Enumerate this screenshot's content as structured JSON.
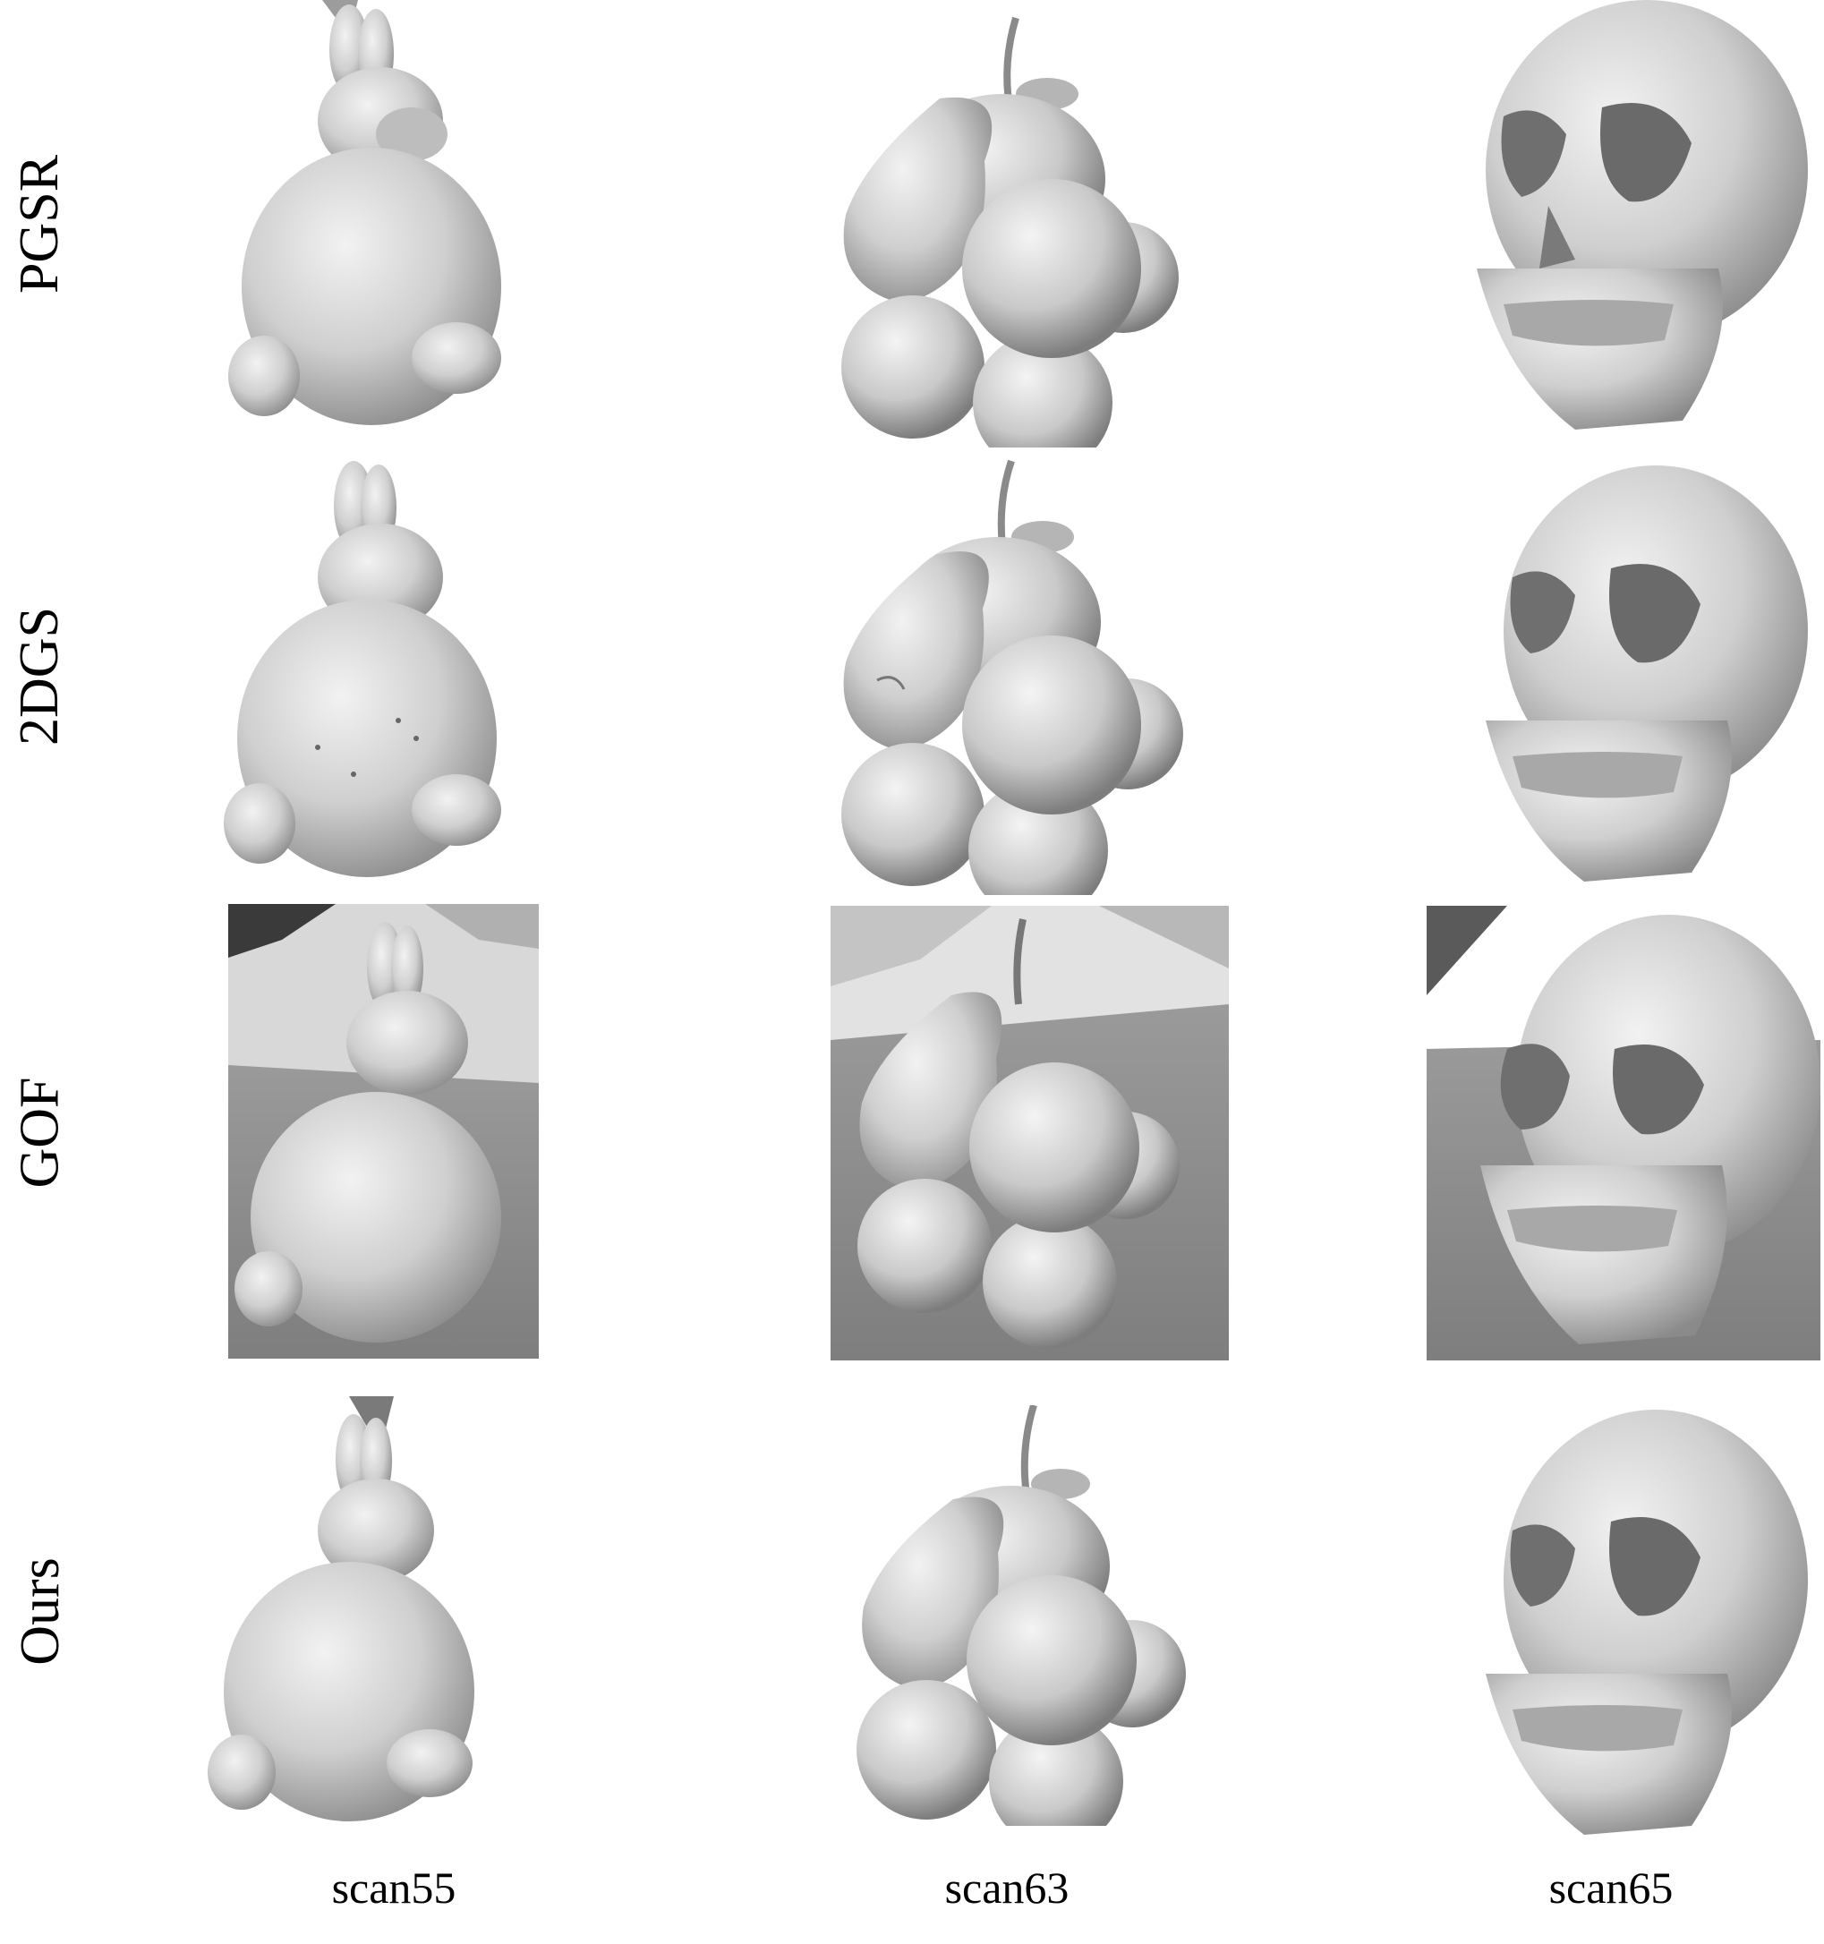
{
  "figure": {
    "row_labels": [
      "PGSR",
      "2DGS",
      "GOF",
      "Ours"
    ],
    "column_labels": [
      "scan55",
      "scan63",
      "scan65"
    ],
    "objects": [
      "bunny",
      "fruit-pile",
      "skull"
    ],
    "colors": {
      "mesh_light": "#e6e6e6",
      "mesh_mid": "#b9b9b9",
      "mesh_dark": "#6f6f6f",
      "ground": "#8f8f8f",
      "background": "#ffffff"
    }
  }
}
